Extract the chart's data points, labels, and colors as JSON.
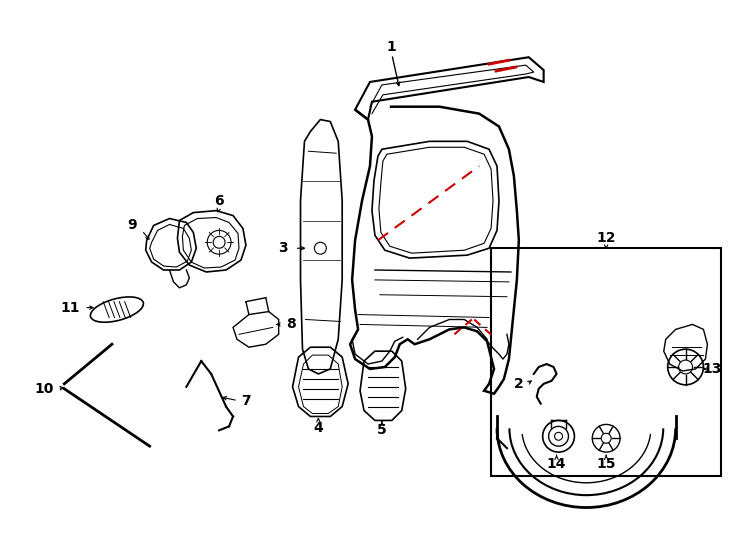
{
  "background_color": "#ffffff",
  "line_color": "#000000",
  "red_color": "#cc0000",
  "label_fontsize": 10,
  "fig_width": 7.34,
  "fig_height": 5.4
}
